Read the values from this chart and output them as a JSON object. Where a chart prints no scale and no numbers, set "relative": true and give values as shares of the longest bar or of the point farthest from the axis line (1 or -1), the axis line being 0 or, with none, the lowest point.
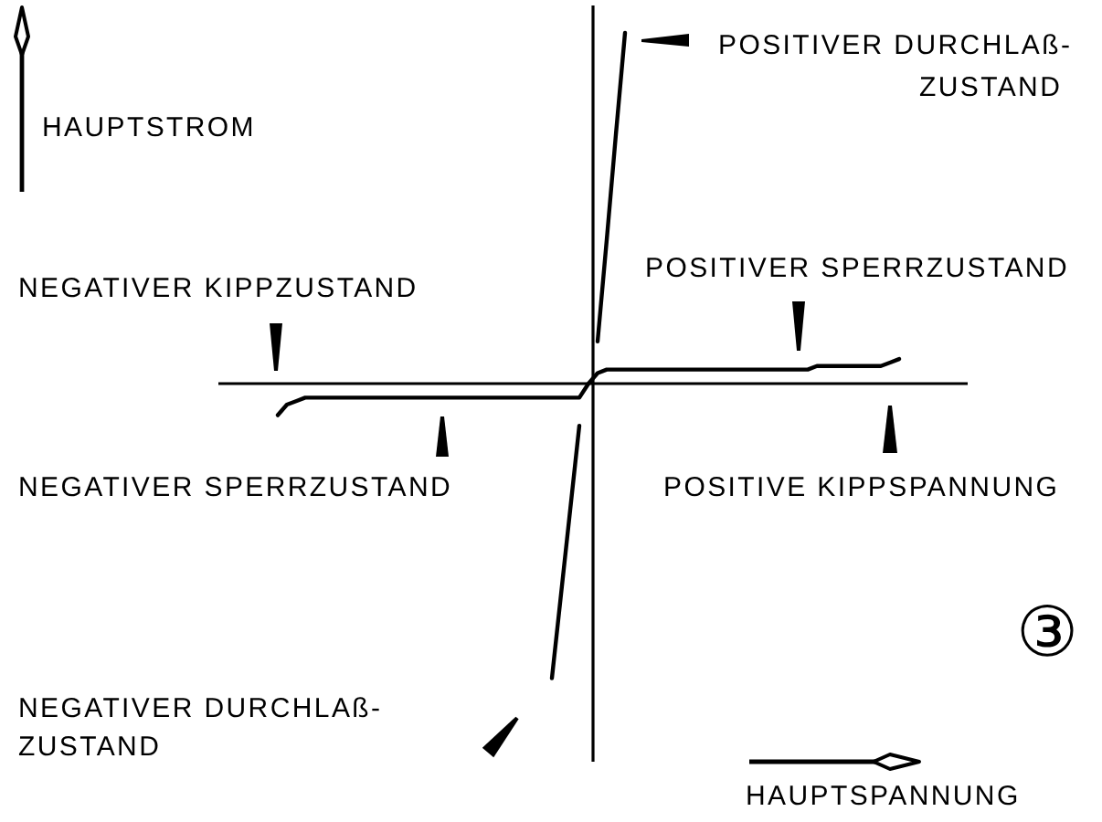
{
  "chart_data": {
    "type": "line",
    "relative": true,
    "xlabel": "HAUPTSPANNUNG",
    "ylabel": "HAUPTSTROM",
    "annotations": [
      "POSITIVER DURCHLAß-\nZUSTAND",
      "POSITIVER SPERRZUSTAND",
      "NEGATIVER KIPPZUSTAND",
      "NEGATIVER SPERRZUSTAND",
      "POSITIVE KIPPSPANNUNG",
      "③",
      "NEGATIVER DURCHLAß-\nZUSTAND"
    ],
    "categories": [
      null,
      null,
      null,
      null,
      null,
      null,
      null,
      null,
      null,
      null,
      null,
      null,
      null,
      null,
      null,
      null,
      null,
      null,
      null,
      null,
      null,
      null,
      null,
      null,
      null,
      null,
      null,
      null,
      null,
      null,
      null,
      null,
      null,
      null,
      null,
      null,
      null,
      null,
      null,
      null,
      null,
      null,
      null,
      null,
      null,
      null,
      null,
      null,
      null,
      null,
      null,
      null,
      null,
      null,
      null,
      null,
      null,
      null,
      null,
      null,
      null,
      null,
      null,
      null,
      null,
      null,
      null,
      null,
      null,
      null,
      null,
      null,
      null,
      null,
      null,
      null,
      null,
      null,
      null,
      null,
      null,
      null
    ],
    "series": [
      {
        "color": "#000000",
        "values": [
          null,
          null,
          null,
          null,
          null,
          null,
          -0.09,
          -0.06,
          -0.05,
          -0.04,
          -0.04,
          -0.04,
          -0.04,
          -0.04,
          -0.04,
          -0.04,
          -0.04,
          -0.04,
          -0.04,
          -0.04,
          -0.04,
          -0.04,
          -0.04,
          -0.04,
          -0.04,
          -0.04,
          -0.04,
          -0.04,
          -0.04,
          -0.04,
          -0.04,
          -0.04,
          -0.04,
          -0.04,
          -0.04,
          -0.04,
          -0.04,
          -0.04,
          -0.04,
          -0.04,
          0,
          0.03,
          0.04,
          0.04,
          0.04,
          0.04,
          0.04,
          0.04,
          0.04,
          0.04,
          0.04,
          0.04,
          0.04,
          0.04,
          0.04,
          0.04,
          0.04,
          0.04,
          0.04,
          0.04,
          0.04,
          0.04,
          0.04,
          0.04,
          0.04,
          0.05,
          0.05,
          0.05,
          0.05,
          0.05,
          0.05,
          0.05,
          0.05,
          0.06,
          0.07,
          null,
          null,
          null,
          null,
          null,
          null,
          null
        ]
      },
      {
        "color": "#000000",
        "values": [
          null,
          null,
          null,
          null,
          null,
          null,
          null,
          null,
          null,
          null,
          null,
          null,
          null,
          null,
          null,
          null,
          null,
          null,
          null,
          null,
          null,
          null,
          null,
          null,
          null,
          null,
          null,
          null,
          null,
          null,
          null,
          null,
          null,
          null,
          null,
          null,
          null,
          null,
          null,
          null,
          null,
          0.12,
          0.41,
          0.71,
          1.0,
          null,
          null,
          null,
          null,
          null,
          null,
          null,
          null,
          null,
          null,
          null,
          null,
          null,
          null,
          null,
          null,
          null,
          null,
          null,
          null,
          null,
          null,
          null,
          null,
          null,
          null,
          null,
          null,
          null,
          null,
          null,
          null,
          null,
          null,
          null,
          null,
          null
        ]
      },
      {
        "color": "#000000",
        "values": [
          null,
          null,
          null,
          null,
          null,
          null,
          null,
          null,
          null,
          null,
          null,
          null,
          null,
          null,
          null,
          null,
          null,
          null,
          null,
          null,
          null,
          null,
          null,
          null,
          null,
          null,
          null,
          null,
          null,
          null,
          null,
          null,
          null,
          null,
          null,
          null,
          -0.84,
          -0.6,
          -0.36,
          -0.12,
          null,
          null,
          null,
          null,
          null,
          null,
          null,
          null,
          null,
          null,
          null,
          null,
          null,
          null,
          null,
          null,
          null,
          null,
          null,
          null,
          null,
          null,
          null,
          null,
          null,
          null,
          null,
          null,
          null,
          null,
          null,
          null,
          null,
          null,
          null,
          null,
          null,
          null,
          null,
          null,
          null,
          null
        ]
      }
    ]
  }
}
